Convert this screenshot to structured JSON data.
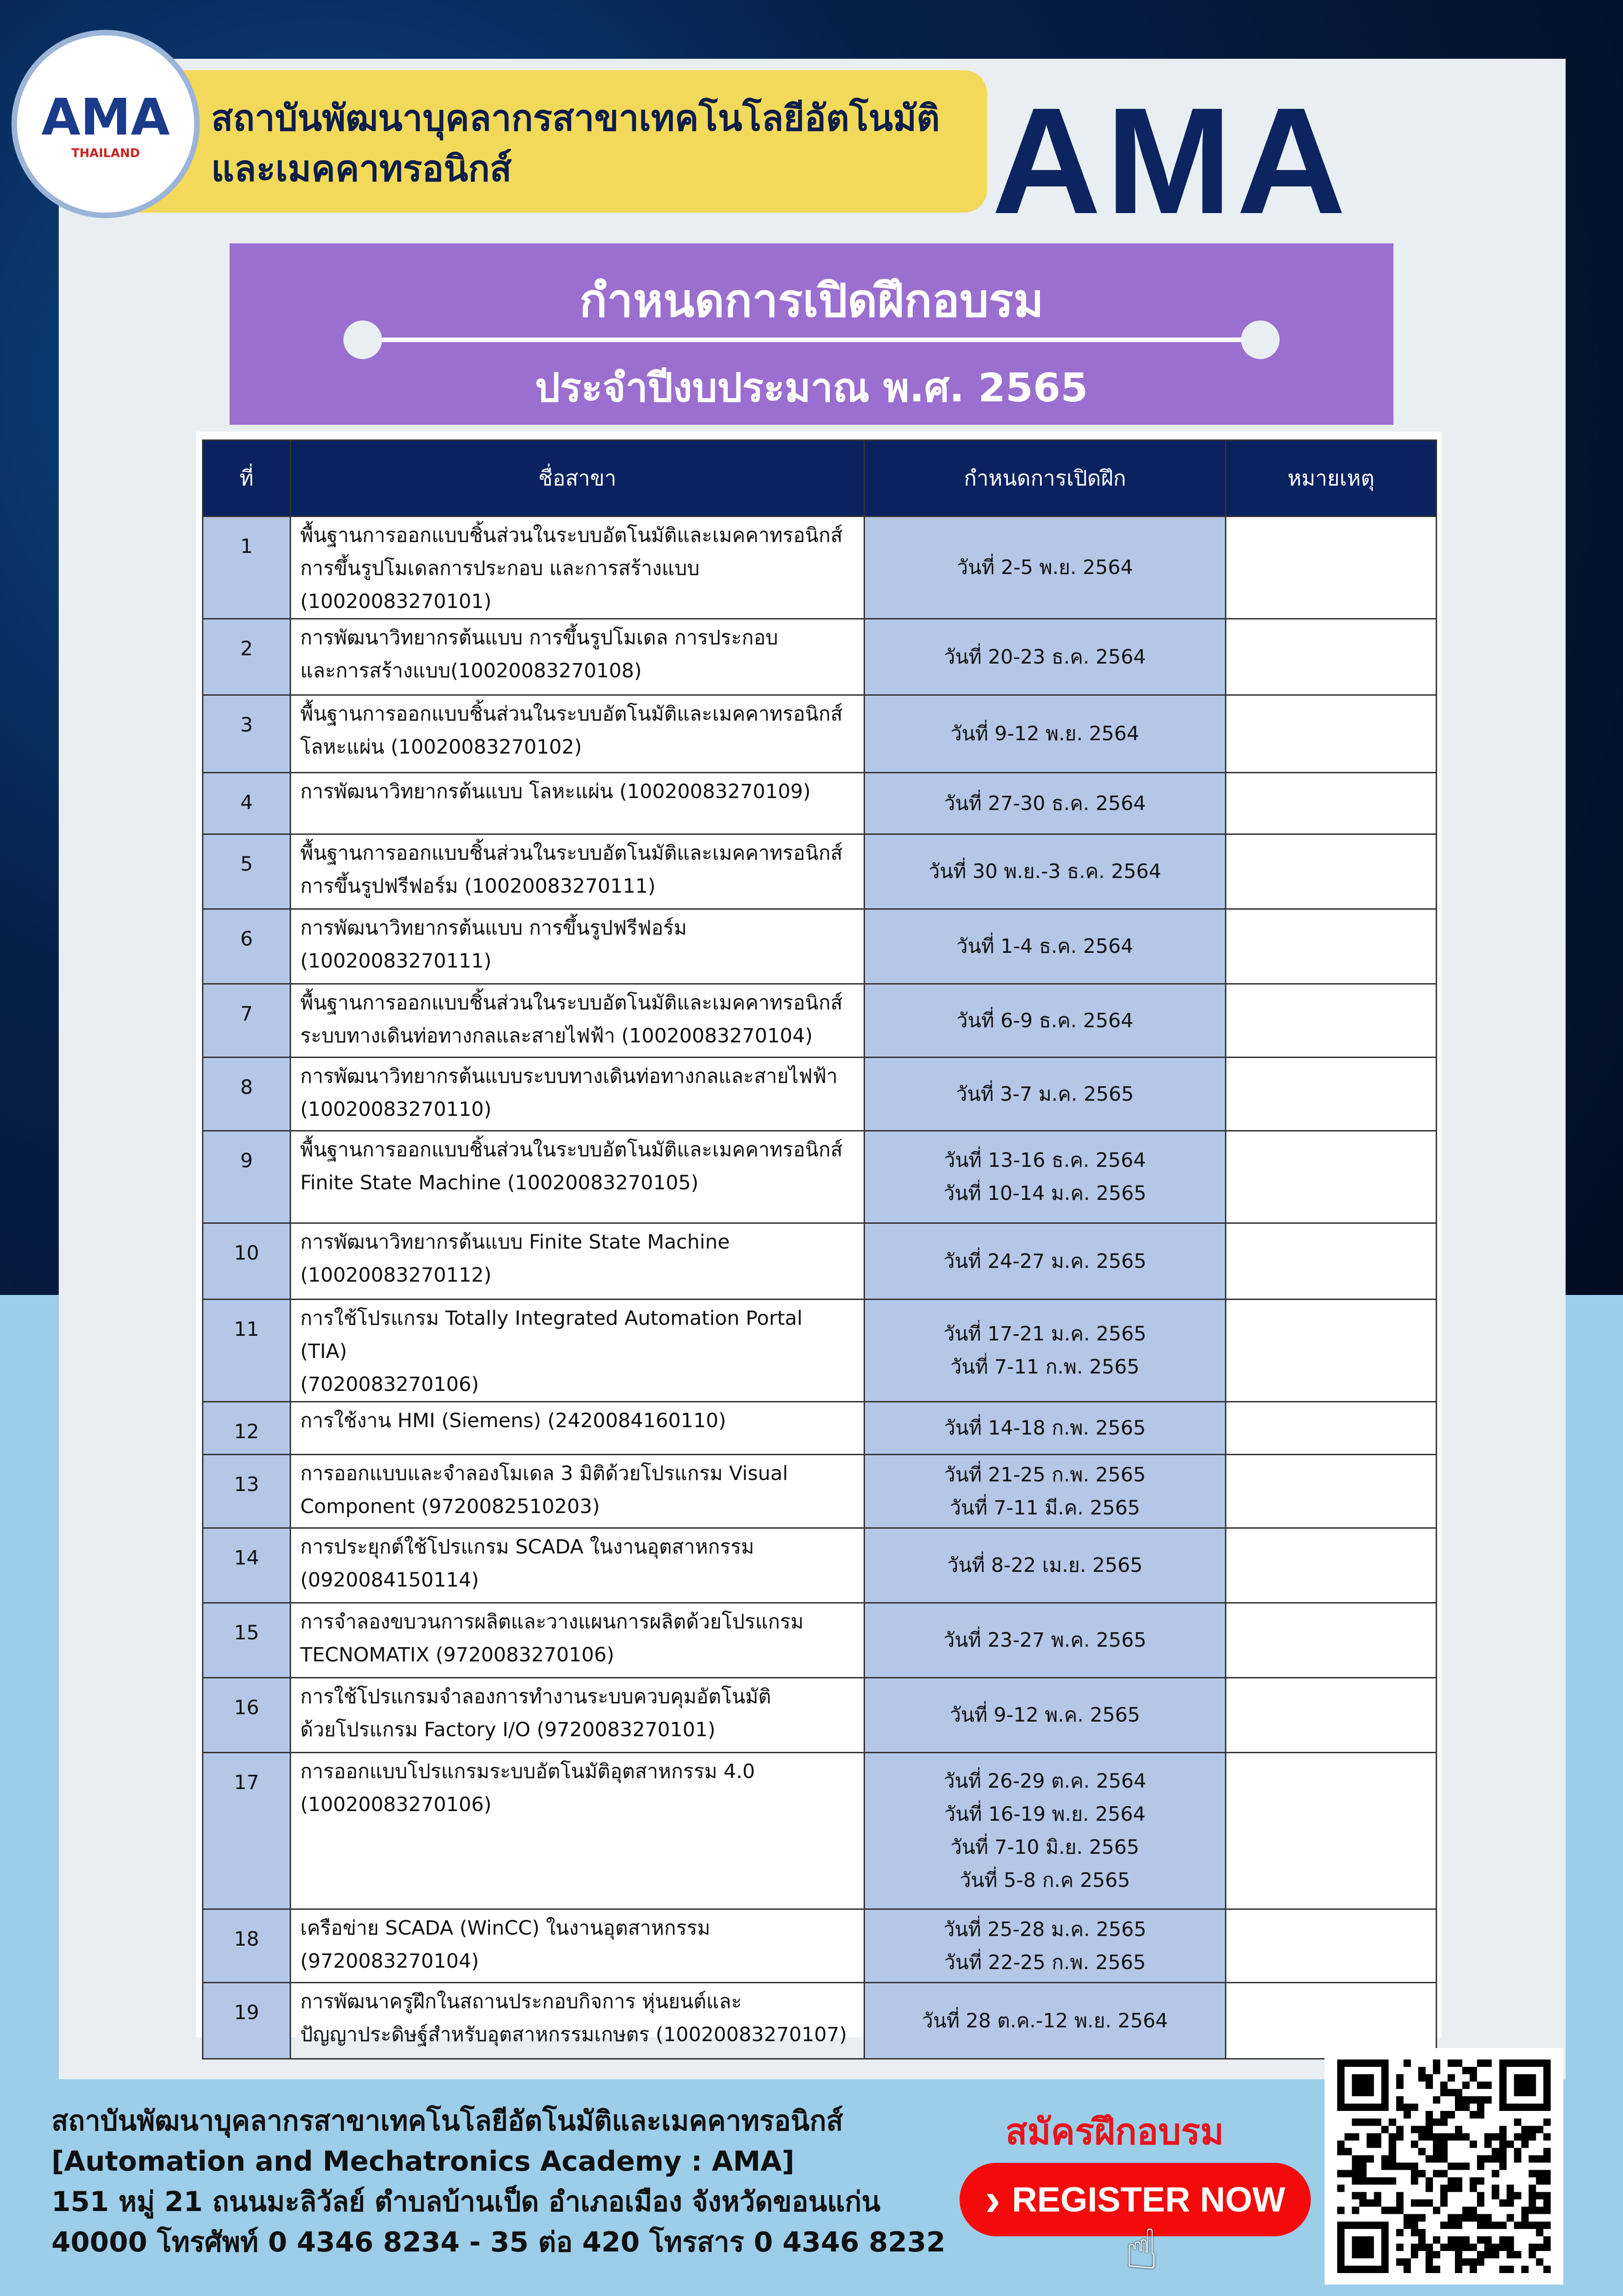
{
  "header": {
    "institute_line1": "สถาบันพัฒนาบุคลากรสาขาเทคโนโลยีอัตโนมัติ",
    "institute_line2": "และเมคคาทรอนิกส์",
    "logo_text": "AMA",
    "logo_sub": "THAILAND",
    "brand": "AMA"
  },
  "title": {
    "main": "กำหนดการเปิดฝึกอบรม",
    "sub": "ประจำปีงบประมาณ พ.ศ. 2565"
  },
  "table": {
    "headers": [
      "ที่",
      "ชื่อสาขา",
      "กำหนดการเปิดฝึก",
      "หมายเหตุ"
    ],
    "rows": [
      {
        "no": "1",
        "course": "พื้นฐานการออกแบบชิ้นส่วนในระบบอัตโนมัติและเมคคาทรอนิกส์\nการขึ้นรูปโมเดลการประกอบ และการสร้างแบบ\n(10020083270101)",
        "dates": "วันที่ 2-5 พ.ย. 2564"
      },
      {
        "no": "2",
        "course": "การพัฒนาวิทยากรต้นแบบ การขึ้นรูปโมเดล การประกอบ\nและการสร้างแบบ(10020083270108)",
        "dates": "วันที่ 20-23 ธ.ค. 2564"
      },
      {
        "no": "3",
        "course": "พื้นฐานการออกแบบชิ้นส่วนในระบบอัตโนมัติและเมคคาทรอนิกส์\nโลหะแผ่น (10020083270102)",
        "dates": "วันที่ 9-12 พ.ย. 2564"
      },
      {
        "no": "4",
        "course": "การพัฒนาวิทยากรต้นแบบ โลหะแผ่น (10020083270109)",
        "dates": "วันที่ 27-30 ธ.ค. 2564"
      },
      {
        "no": "5",
        "course": "พื้นฐานการออกแบบชิ้นส่วนในระบบอัตโนมัติและเมคคาทรอนิกส์\nการขึ้นรูปฟรีฟอร์ม (10020083270111)",
        "dates": "วันที่ 30 พ.ย.-3 ธ.ค. 2564"
      },
      {
        "no": "6",
        "course": "การพัฒนาวิทยากรต้นแบบ การขึ้นรูปฟรีฟอร์ม\n(10020083270111)",
        "dates": "วันที่ 1-4 ธ.ค. 2564"
      },
      {
        "no": "7",
        "course": "พื้นฐานการออกแบบชิ้นส่วนในระบบอัตโนมัติและเมคคาทรอนิกส์\nระบบทางเดินท่อทางกลและสายไฟฟ้า (10020083270104)",
        "dates": "วันที่ 6-9 ธ.ค. 2564"
      },
      {
        "no": "8",
        "course": "การพัฒนาวิทยากรต้นแบบระบบทางเดินท่อทางกลและสายไฟฟ้า\n(10020083270110)",
        "dates": "วันที่ 3-7 ม.ค. 2565"
      },
      {
        "no": "9",
        "course": "พื้นฐานการออกแบบชิ้นส่วนในระบบอัตโนมัติและเมคคาทรอนิกส์\nFinite State Machine (10020083270105)",
        "dates": "วันที่ 13-16 ธ.ค. 2564\nวันที่ 10-14 ม.ค. 2565"
      },
      {
        "no": "10",
        "course": "การพัฒนาวิทยากรต้นแบบ Finite State Machine\n(10020083270112)",
        "dates": "วันที่ 24-27 ม.ค. 2565"
      },
      {
        "no": "11",
        "course": "การใช้โปรแกรม Totally Integrated Automation Portal (TIA)\n(7020083270106)",
        "dates": "วันที่ 17-21 ม.ค. 2565\nวันที่ 7-11 ก.พ. 2565"
      },
      {
        "no": "12",
        "course": "การใช้งาน HMI (Siemens) (2420084160110)",
        "dates": "วันที่ 14-18 ก.พ. 2565"
      },
      {
        "no": "13",
        "course": "การออกแบบและจำลองโมเดล 3 มิติด้วยโปรแกรม Visual\nComponent (9720082510203)",
        "dates": "วันที่ 21-25 ก.พ. 2565\nวันที่ 7-11 มี.ค. 2565"
      },
      {
        "no": "14",
        "course": "การประยุกต์ใช้โปรแกรม SCADA ในงานอุตสาหกรรม\n(0920084150114)",
        "dates": "วันที่ 8-22 เม.ย. 2565"
      },
      {
        "no": "15",
        "course": "การจำลองขบวนการผลิตและวางแผนการผลิตด้วยโปรแกรม\nTECNOMATIX (9720083270106)",
        "dates": "วันที่ 23-27 พ.ค. 2565"
      },
      {
        "no": "16",
        "course": "การใช้โปรแกรมจำลองการทำงานระบบควบคุมอัตโนมัติ\nด้วยโปรแกรม Factory I/O (9720083270101)",
        "dates": "วันที่ 9-12 พ.ค. 2565"
      },
      {
        "no": "17",
        "course": "การออกแบบโปรแกรมระบบอัตโนมัติอุตสาหกรรม 4.0\n(10020083270106)",
        "dates": "วันที่ 26-29 ต.ค. 2564\nวันที่ 16-19 พ.ย. 2564\nวันที่ 7-10 มิ.ย. 2565\nวันที่ 5-8 ก.ค 2565"
      },
      {
        "no": "18",
        "course": "เครือข่าย SCADA (WinCC) ในงานอุตสาหกรรม\n(9720083270104)",
        "dates": "วันที่ 25-28 ม.ค. 2565\nวันที่ 22-25 ก.พ. 2565"
      },
      {
        "no": "19",
        "course": "การพัฒนาครูฝึกในสถานประกอบกิจการ หุ่นยนต์และ\nปัญญาประดิษฐ์สำหรับอุตสาหกรรมเกษตร (10020083270107)",
        "dates": "วันที่ 28 ต.ค.-12 พ.ย. 2564"
      }
    ]
  },
  "footer": {
    "line1": "สถาบันพัฒนาบุคลากรสาขาเทคโนโลยีอัตโนมัติและเมคคาทรอนิกส์",
    "line2": "[Automation and Mechatronics Academy : AMA]",
    "line3": "151 หมู่ 21 ถนนมะลิวัลย์ ตำบลบ้านเป็ด อำเภอเมือง จังหวัดขอนแก่น",
    "line4": "40000 โทรศัพท์ 0 4346 8234 - 35 ต่อ 420 โทรสาร 0 4346 8232"
  },
  "cta": {
    "apply_label": "สมัครฝึกอบรม",
    "register_label": "REGISTER NOW",
    "chevron": "›"
  },
  "colors": {
    "header_bg": "#0b2260",
    "purple": "#9b6fd0",
    "yellow": "#f3d95a",
    "cell_blue": "#b4c7e7",
    "register_red": "#f40a0a"
  }
}
